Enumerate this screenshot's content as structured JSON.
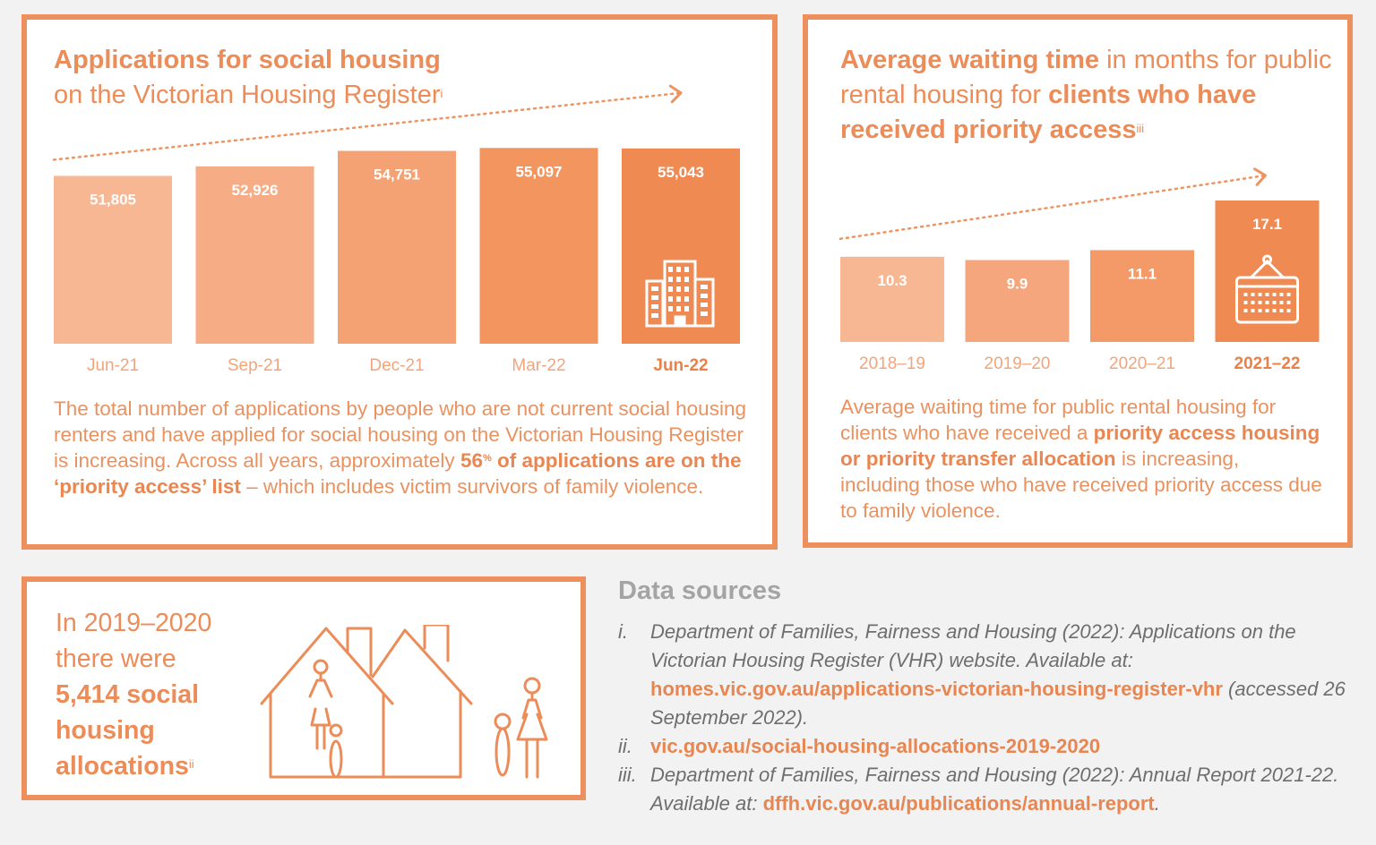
{
  "panel_applications": {
    "title_bold": "Applications for social housing",
    "title_rest": "on the Victorian Housing Register",
    "title_note": "i",
    "desc": {
      "p1": "The total number of applications by people who are not current social housing renters and have applied for social housing on the Victorian Housing Register is increasing. Across all years, approximately ",
      "pct": "56",
      "pct_sup": "%",
      "bold_rest": " of applications are on the ‘priority access’ list",
      "p2": " – which includes victim survivors of family violence."
    }
  },
  "panel_waiting": {
    "title_bold1": "Average waiting time",
    "title_mid": " in months for public rental housing for ",
    "title_bold2": "clients who have received priority access",
    "title_note": "iii",
    "desc": {
      "p1": "Average waiting time for public rental housing for clients who have received a ",
      "bold": "priority access housing or priority transfer allocation",
      "p2": " is increasing, including those who have received priority access due to family violence."
    }
  },
  "panel_allocations": {
    "line1": "In 2019–2020",
    "line2": "there were",
    "bold": "5,414 social housing allocations",
    "note": "ii"
  },
  "data_sources": {
    "heading": "Data sources",
    "items": [
      {
        "num": "i.",
        "text": "Department of Families, Fairness and Housing (2022): Applications on the Victorian Housing Register (VHR) website. Available at: ",
        "link": "homes.vic.gov.au/applications-victorian-housing-register-vhr",
        "after": " (accessed 26 September 2022)."
      },
      {
        "num": "ii.",
        "text": "",
        "link": "vic.gov.au/social-housing-allocations-2019-2020",
        "after": ""
      },
      {
        "num": "iii.",
        "text": "Department of Families, Fairness and Housing (2022): Annual Report 2021-22. Available at: ",
        "link": "dffh.vic.gov.au/publications/annual-report",
        "after": "."
      }
    ]
  },
  "colors": {
    "border": "#ee8f5e",
    "accent": "#ec8c58",
    "sources_text": "#6e6e6e",
    "sources_heading": "#a4a4a4"
  },
  "chart_data": [
    {
      "type": "bar",
      "title": "Applications for social housing on the Victorian Housing Register",
      "categories": [
        "Jun-21",
        "Sep-21",
        "Dec-21",
        "Mar-22",
        "Jun-22"
      ],
      "values": [
        51805,
        52926,
        54751,
        55097,
        55043
      ],
      "labels": [
        "51,805",
        "52,926",
        "54,751",
        "55,097",
        "55,043"
      ],
      "colors": [
        "#f7b793",
        "#f6ad86",
        "#f4a274",
        "#f2955f",
        "#ef8a52"
      ],
      "icon_on_last_bar": "building-icon",
      "trend_arrow": true,
      "ylim": [
        32000,
        56500
      ]
    },
    {
      "type": "bar",
      "title": "Average waiting time in months for public rental housing for clients who have received priority access",
      "categories": [
        "2018–19",
        "2019–20",
        "2020–21",
        "2021–22"
      ],
      "values": [
        10.3,
        9.9,
        11.1,
        17.1
      ],
      "labels": [
        "10.3",
        "9.9",
        "11.1",
        "17.1"
      ],
      "colors": [
        "#f7b793",
        "#f5a67c",
        "#f39a68",
        "#ef8a52"
      ],
      "icon_on_last_bar": "calendar-icon",
      "trend_arrow": true,
      "ylim": [
        0,
        17.1
      ]
    }
  ]
}
